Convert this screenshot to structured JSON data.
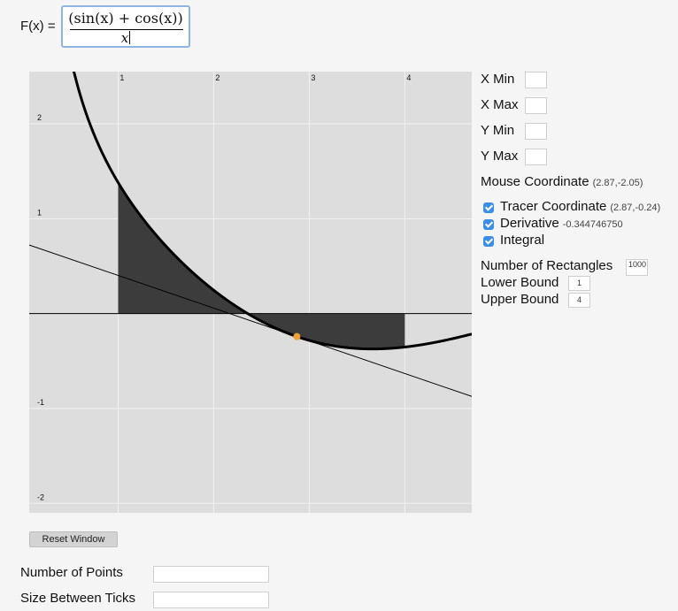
{
  "formula": {
    "label": "F(x) =",
    "numerator": "(sin(x) + cos(x))",
    "denominator": "x"
  },
  "graph": {
    "x_ticks": [
      "1",
      "2",
      "3",
      "4"
    ],
    "y_ticks": [
      "2",
      "1",
      "-1",
      "-2"
    ],
    "x_range": [
      0.07,
      4.7
    ],
    "y_range": [
      -2.1,
      2.55
    ],
    "tracer_x": 2.87,
    "integral_lower": 1,
    "integral_upper": 4,
    "colors": {
      "background": "#dddddd",
      "grid": "#f2f2f2",
      "curve": "#000000",
      "integral_fill": "#3c3c3c",
      "tracer": "#f0a030"
    }
  },
  "controls": {
    "xmin": {
      "label": "X Min",
      "value": ""
    },
    "xmax": {
      "label": "X Max",
      "value": ""
    },
    "ymin": {
      "label": "Y Min",
      "value": ""
    },
    "ymax": {
      "label": "Y Max",
      "value": ""
    },
    "mouse": {
      "label": "Mouse Coordinate",
      "value": "(2.87,-2.05)"
    },
    "tracer": {
      "label": "Tracer Coordinate",
      "value": "(2.87,-0.24)",
      "checked": true
    },
    "derivative": {
      "label": "Derivative",
      "value": "-0.344746750",
      "checked": true
    },
    "integral": {
      "label": "Integral",
      "checked": true
    },
    "rectangles": {
      "label": "Number of Rectangles",
      "value": "1000"
    },
    "lower": {
      "label": "Lower Bound",
      "value": "1"
    },
    "upper": {
      "label": "Upper Bound",
      "value": "4"
    }
  },
  "reset_button": "Reset Window",
  "points": {
    "label": "Number of Points",
    "value": ""
  },
  "ticks": {
    "label": "Size Between Ticks",
    "value": ""
  }
}
